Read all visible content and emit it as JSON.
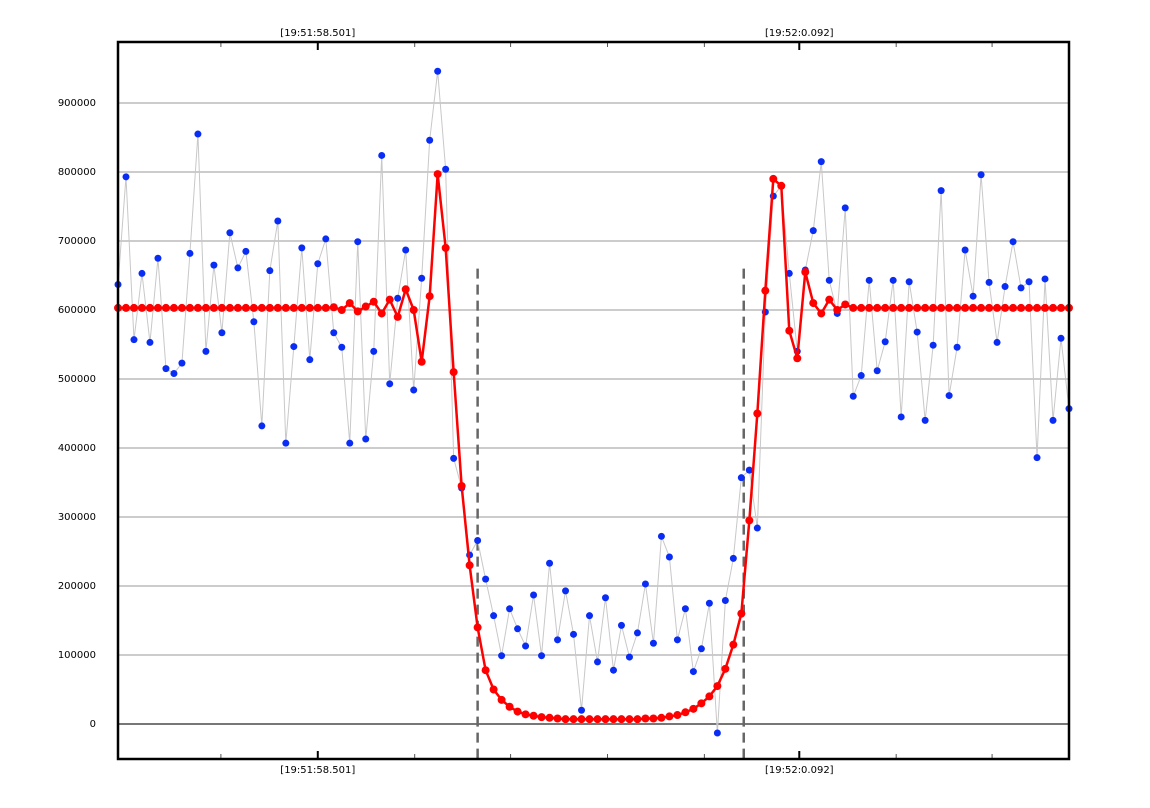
{
  "chart_data": {
    "type": "line",
    "x": [
      0,
      1,
      2,
      3,
      4,
      5,
      6,
      7,
      8,
      9,
      10,
      11,
      12,
      13,
      14,
      15,
      16,
      17,
      18,
      19,
      20,
      21,
      22,
      23,
      24,
      25,
      26,
      27,
      28,
      29,
      30,
      31,
      32,
      33,
      34,
      35,
      36,
      37,
      38,
      39,
      40,
      41,
      42,
      43,
      44,
      45,
      46,
      47,
      48,
      49,
      50,
      51,
      52,
      53,
      54,
      55,
      56,
      57,
      58,
      59,
      60,
      61,
      62,
      63,
      64,
      65,
      66,
      67,
      68,
      69,
      70,
      71,
      72,
      73,
      74,
      75,
      76,
      77,
      78,
      79,
      80,
      81,
      82,
      83,
      84,
      85,
      86,
      87,
      88,
      89,
      90,
      91,
      92,
      93,
      94,
      95,
      96,
      97,
      98,
      99,
      100,
      101,
      102,
      103,
      104,
      105,
      106,
      107,
      108,
      109,
      110,
      111,
      112,
      113,
      114,
      115,
      116,
      117,
      118,
      119
    ],
    "series": [
      {
        "color": "#0a2df5",
        "line_color": "#c8c8c8",
        "values": [
          637000,
          793000,
          557000,
          653000,
          553000,
          675000,
          515000,
          508000,
          523000,
          682000,
          855000,
          540000,
          665000,
          567000,
          712000,
          661000,
          685000,
          583000,
          432000,
          657000,
          729000,
          407000,
          547000,
          690000,
          528000,
          667000,
          703000,
          567000,
          546000,
          407000,
          699000,
          413000,
          540000,
          824000,
          493000,
          617000,
          687000,
          484000,
          646000,
          846000,
          946000,
          804000,
          385000,
          342000,
          245000,
          266000,
          210000,
          157000,
          99000,
          167000,
          138000,
          113000,
          187000,
          99000,
          233000,
          122000,
          193000,
          130000,
          20000,
          157000,
          90000,
          183000,
          78000,
          143000,
          97000,
          132000,
          203000,
          117000,
          272000,
          242000,
          122000,
          167000,
          76000,
          109000,
          175000,
          -13000,
          179000,
          240000,
          357000,
          368000,
          284000,
          597000,
          765000,
          780000,
          653000,
          540000,
          658000,
          715000,
          815000,
          643000,
          595000,
          748000,
          475000,
          505000,
          643000,
          512000,
          554000,
          643000,
          445000,
          641000,
          568000,
          440000,
          549000,
          773000,
          476000,
          546000,
          687000,
          620000,
          796000,
          640000,
          553000,
          634000,
          699000,
          632000,
          641000,
          386000,
          645000,
          440000,
          559000,
          457000
        ]
      },
      {
        "color": "#ff0000",
        "line_color": "#ff0000",
        "values": [
          603000,
          603000,
          603000,
          603000,
          603000,
          603000,
          603000,
          603000,
          603000,
          603000,
          603000,
          603000,
          603000,
          603000,
          603000,
          603000,
          603000,
          603000,
          603000,
          603000,
          603000,
          603000,
          603000,
          603000,
          603000,
          603000,
          603000,
          604000,
          600000,
          610000,
          598000,
          605000,
          612000,
          595000,
          615000,
          590000,
          630000,
          600000,
          525000,
          620000,
          797000,
          690000,
          510000,
          345000,
          230000,
          140000,
          78000,
          50000,
          35000,
          25000,
          18000,
          14000,
          12000,
          10000,
          9000,
          8000,
          7000,
          7000,
          7000,
          7000,
          7000,
          7000,
          7000,
          7000,
          7000,
          7000,
          8000,
          8000,
          9000,
          11000,
          13000,
          17000,
          22000,
          30000,
          40000,
          55000,
          80000,
          115000,
          160000,
          295000,
          450000,
          628000,
          790000,
          780000,
          570000,
          530000,
          655000,
          610000,
          595000,
          615000,
          600000,
          608000,
          603000,
          603000,
          603000,
          603000,
          603000,
          603000,
          603000,
          603000,
          603000,
          603000,
          603000,
          603000,
          603000,
          603000,
          603000,
          603000,
          603000,
          603000,
          603000,
          603000,
          603000,
          603000,
          603000,
          603000,
          603000,
          603000,
          603000,
          603000
        ]
      }
    ],
    "xlim": [
      0,
      119
    ],
    "ylim": [
      -50700,
      988400
    ],
    "yticks": [
      0,
      100000,
      200000,
      300000,
      400000,
      500000,
      600000,
      700000,
      800000,
      900000
    ],
    "xticks": [
      {
        "value": 25,
        "label": "[19:51:58.501]"
      },
      {
        "value": 85.25,
        "label": "[19:52:0.092]"
      }
    ],
    "xticks_minor": [
      12.875,
      37.125,
      49.125,
      61.25,
      73.375,
      97.375,
      109.375
    ],
    "vlines": [
      45,
      78.3
    ],
    "vline_top": 660000,
    "grid": true
  }
}
